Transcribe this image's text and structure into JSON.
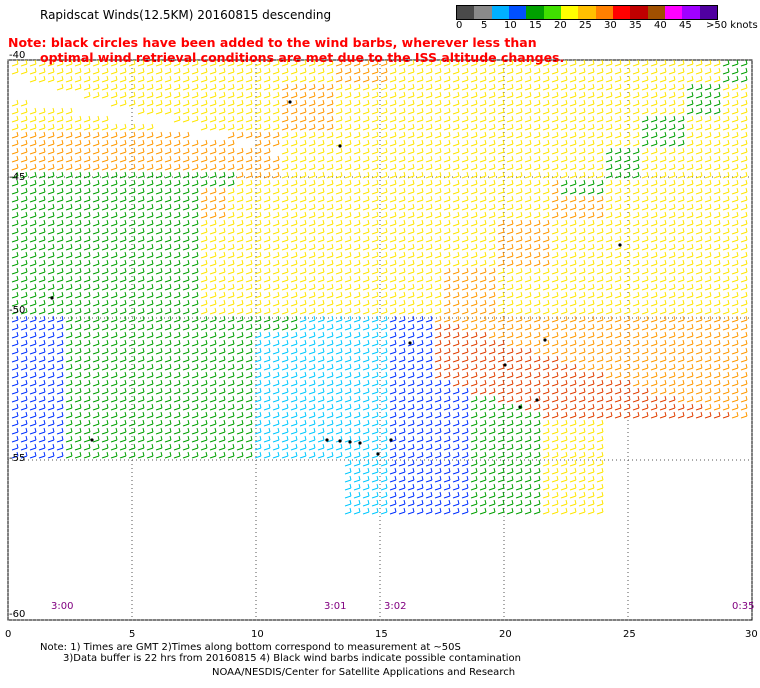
{
  "header": {
    "title": "Rapidscat Winds(12.5KM) 20160815 descending",
    "note_line1": "Note: black circles have been added to the wind barbs, wherever less than",
    "note_line2": "optimal wind retrieval conditions are met due to the ISS altitude changes."
  },
  "legend": {
    "labels": [
      "0",
      "5",
      "10",
      "15",
      "20",
      "25",
      "30",
      "35",
      "40",
      "45",
      ">50 knots"
    ],
    "colors": [
      "#4a4a4a",
      "#8a8a8a",
      "#00b0ff",
      "#0050ff",
      "#00a000",
      "#40e000",
      "#ffff00",
      "#ffc000",
      "#ff8000",
      "#ff0000",
      "#c00000",
      "#a05000",
      "#ff00ff",
      "#a000ff",
      "#5000a0"
    ]
  },
  "map": {
    "y_labels": [
      "-40",
      "-45",
      "-50",
      "-55",
      "-60"
    ],
    "x_labels": [
      "0",
      "5",
      "10",
      "15",
      "20",
      "25",
      "30"
    ],
    "time_labels": [
      "3:00",
      "3:01",
      "3:02",
      "0:35"
    ],
    "time_color": "#800080",
    "barb_colors": {
      "calm": "#00c8ff",
      "light": "#0030ff",
      "moderate": "#00a000",
      "fresh": "#ffe600",
      "strong": "#ff9900",
      "gale": "#e04000",
      "flag": "#000000"
    }
  },
  "footer": {
    "line1": "Note: 1) Times are GMT 2)Times along bottom correspond to measurement at ~50S",
    "line2": "3)Data buffer is 22 hrs from 20160815 4) Black wind barbs indicate possible contamination",
    "line3": "NOAA/NESDIS/Center for Satellite Applications and Research"
  }
}
